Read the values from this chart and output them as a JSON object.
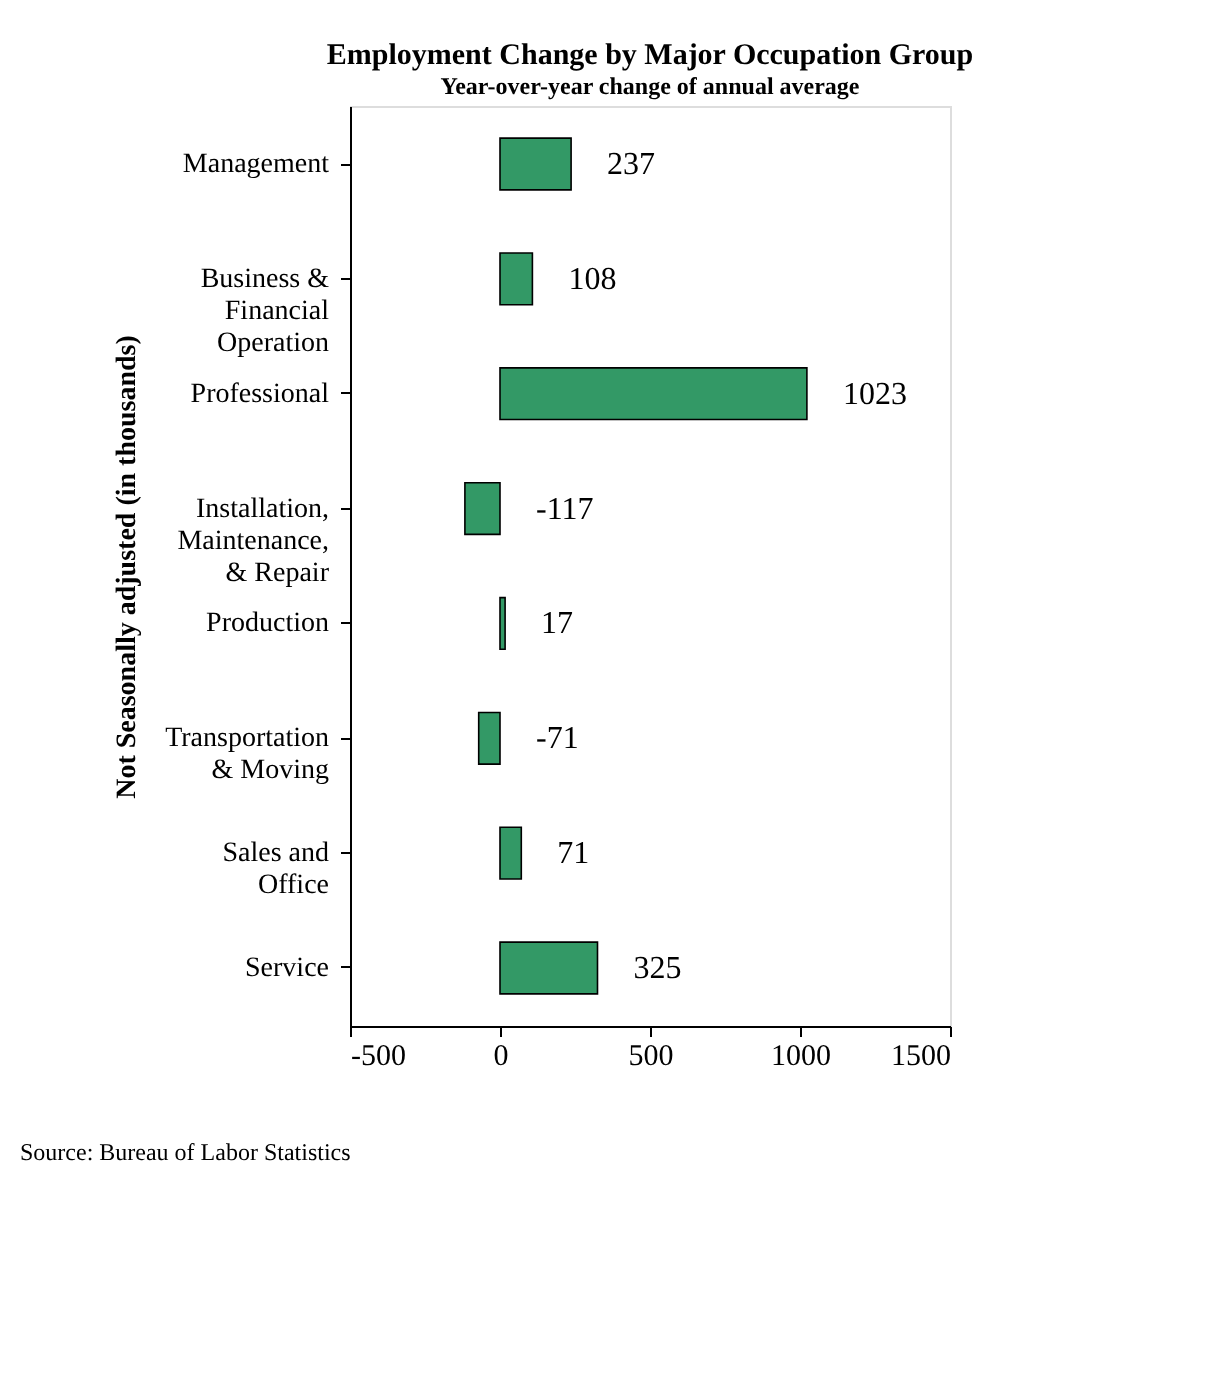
{
  "chart_data": {
    "type": "bar",
    "orientation": "horizontal",
    "title": "Employment Change by Major Occupation Group",
    "subtitle": "Year-over-year change of annual average",
    "ylabel": "Not Seasonally adjusted (in thousands)",
    "categories": [
      "Management",
      "Business &\nFinancial\nOperation",
      "Professional",
      "Installation,\nMaintenance,\n& Repair",
      "Production",
      "Transportation\n& Moving",
      "Sales and\nOffice",
      "Service"
    ],
    "values": [
      237,
      108,
      1023,
      -117,
      17,
      -71,
      71,
      325
    ],
    "color": "#339966",
    "data_labels": true,
    "xlim": [
      -500,
      1500
    ],
    "xticks": [
      -500,
      0,
      500,
      1000,
      1500
    ],
    "grid": false,
    "annotations": [
      "Source: Bureau of Labor Statistics"
    ]
  }
}
